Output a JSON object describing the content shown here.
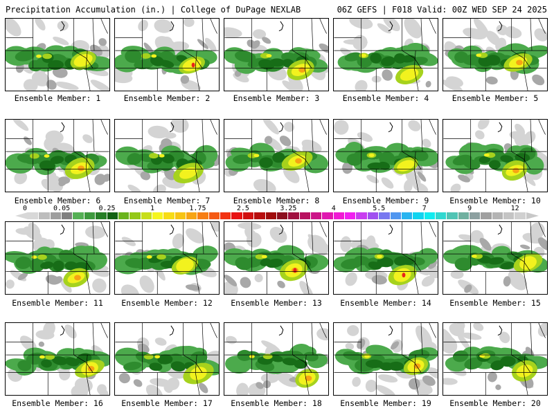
{
  "header": {
    "title": "Precipitation Accumulation (in.) | College of DuPage NEXLAB",
    "valid": "06Z GEFS | F018 Valid: 00Z WED SEP 24 2025"
  },
  "panels": [
    {
      "label": "Ensemble Member: 1"
    },
    {
      "label": "Ensemble Member: 2"
    },
    {
      "label": "Ensemble Member: 3"
    },
    {
      "label": "Ensemble Member: 4"
    },
    {
      "label": "Ensemble Member: 5"
    },
    {
      "label": "Ensemble Member: 6"
    },
    {
      "label": "Ensemble Member: 7"
    },
    {
      "label": "Ensemble Member: 8"
    },
    {
      "label": "Ensemble Member: 9"
    },
    {
      "label": "Ensemble Member: 10"
    },
    {
      "label": "Ensemble Member: 11"
    },
    {
      "label": "Ensemble Member: 12"
    },
    {
      "label": "Ensemble Member: 13"
    },
    {
      "label": "Ensemble Member: 14"
    },
    {
      "label": "Ensemble Member: 15"
    },
    {
      "label": "Ensemble Member: 16"
    },
    {
      "label": "Ensemble Member: 17"
    },
    {
      "label": "Ensemble Member: 18"
    },
    {
      "label": "Ensemble Member: 19"
    },
    {
      "label": "Ensemble Member: 20"
    }
  ],
  "colorbar": {
    "ticks": [
      "0",
      "0.05",
      "0.25",
      "1",
      "1.75",
      "2.5",
      "3.25",
      "4",
      "5.5",
      "7",
      "9",
      "12"
    ],
    "tick_index": [
      0,
      3,
      7,
      11,
      15,
      19,
      23,
      27,
      31,
      35,
      39,
      43
    ],
    "colors": [
      "#d8d8d8",
      "#bdbdbd",
      "#9e9e9e",
      "#7f7f7f",
      "#55b055",
      "#3d9a3d",
      "#267f26",
      "#126212",
      "#6ab41c",
      "#94c818",
      "#c7de1a",
      "#f5f51f",
      "#f7dc15",
      "#f7c413",
      "#f7a414",
      "#f77e14",
      "#f55a13",
      "#f23312",
      "#e81212",
      "#d11010",
      "#b80e0e",
      "#a00c0c",
      "#8c0f1f",
      "#a01040",
      "#b81260",
      "#cc1488",
      "#e016b0",
      "#f01ad4",
      "#f01ff0",
      "#c83cf0",
      "#a050f0",
      "#7878f0",
      "#5096f0",
      "#28b4f0",
      "#10d4f0",
      "#10ecf0",
      "#30d8d0",
      "#50c4b4",
      "#70b0a0",
      "#8ca0a0",
      "#a0a0a0",
      "#b4b4b4",
      "#c4c4c4",
      "#d0d0d0"
    ]
  },
  "field_colors": {
    "light_gray": "#d4d4d4",
    "mid_gray": "#a8a8a8",
    "dark_gray": "#7a7a7a",
    "light_green": "#4caa4c",
    "mid_green": "#2e8b2e",
    "dark_green": "#176d17",
    "yellow_green": "#a6d21d",
    "yellow": "#f2f21e",
    "orange": "#f6a314",
    "red": "#e8231a"
  }
}
